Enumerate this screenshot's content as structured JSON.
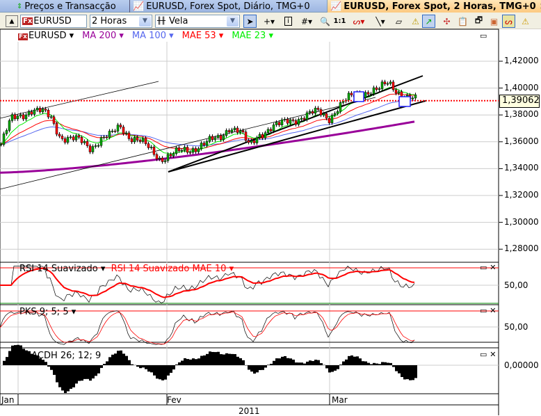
{
  "tabs": [
    {
      "label": "Preços e Transacção",
      "icon": "updown-arrows-icon"
    },
    {
      "label": "EURUSD, Forex Spot, Diário, TMG+0",
      "icon": "chart-icon"
    },
    {
      "label": "EURUSD, Forex Spot, 2 Horas, TMG+0",
      "icon": "chart-icon",
      "active": true,
      "close": "×"
    }
  ],
  "toolbar": {
    "symbol": "EURUSD",
    "symbol_badge": "Fx",
    "interval": "2 Horas",
    "chart_type": "Vela",
    "tools": [
      "cursor-icon",
      "crosshair-icon",
      "info-icon",
      "grid-icon",
      "zoom-icon",
      "one-to-one-icon",
      "indicator-icon",
      "line-icon",
      "eraser-icon",
      "alert-erase-icon",
      "trendline-icon",
      "strategy-icon",
      "clipboard-chart-icon",
      "copy-chart-icon",
      "color-chart-icon",
      "oscillator-icon",
      "warning-icon"
    ],
    "one_to_one": "1:1"
  },
  "legend": [
    {
      "label": "EURUSD",
      "color": "#000000"
    },
    {
      "label": "MA 200",
      "color": "#990099"
    },
    {
      "label": "MA 100",
      "color": "#5566ee"
    },
    {
      "label": "MAE 53",
      "color": "#ff0000"
    },
    {
      "label": "MAE 23",
      "color": "#00ee00"
    }
  ],
  "price_axis": {
    "ticks": [
      "1,42000",
      "1,40000",
      "1,38000",
      "1,36000",
      "1,34000",
      "1,32000",
      "1,30000",
      "1,28000"
    ],
    "current": "1,39062"
  },
  "panels": {
    "rsi": {
      "label": "RSI 14 Suavizado",
      "label2": "RSI 14 Suavizado MAE 10",
      "tick": "50,00"
    },
    "pks": {
      "label": "PKS 9; 5; 5",
      "tick": "50,00"
    },
    "macd": {
      "label": "MACDH 26; 12; 9",
      "tick": "0,00000"
    }
  },
  "time_axis": {
    "months": [
      "Jan",
      "Fev",
      "Mar"
    ],
    "year": "2011"
  },
  "chart_data": {
    "type": "candlestick",
    "symbol": "EURUSD",
    "ylim": [
      1.27,
      1.43
    ],
    "current_price": 1.39062,
    "closes": [
      1.358,
      1.376,
      1.38,
      1.384,
      1.382,
      1.378,
      1.364,
      1.362,
      1.36,
      1.356,
      1.362,
      1.364,
      1.372,
      1.364,
      1.36,
      1.354,
      1.348,
      1.35,
      1.352,
      1.354,
      1.358,
      1.36,
      1.362,
      1.372,
      1.368,
      1.356,
      1.366,
      1.37,
      1.372,
      1.376,
      1.378,
      1.38,
      1.382,
      1.378,
      1.386,
      1.392,
      1.396,
      1.398,
      1.398,
      1.404,
      1.398,
      1.392,
      1.39
    ],
    "ma200": [
      1.337,
      1.375
    ],
    "colors": {
      "up": "#00aa00",
      "down": "#ff0000",
      "ma200": "#990099",
      "ma100": "#5566ee",
      "mae53": "#ff0000",
      "mae23": "#00ee00"
    }
  }
}
